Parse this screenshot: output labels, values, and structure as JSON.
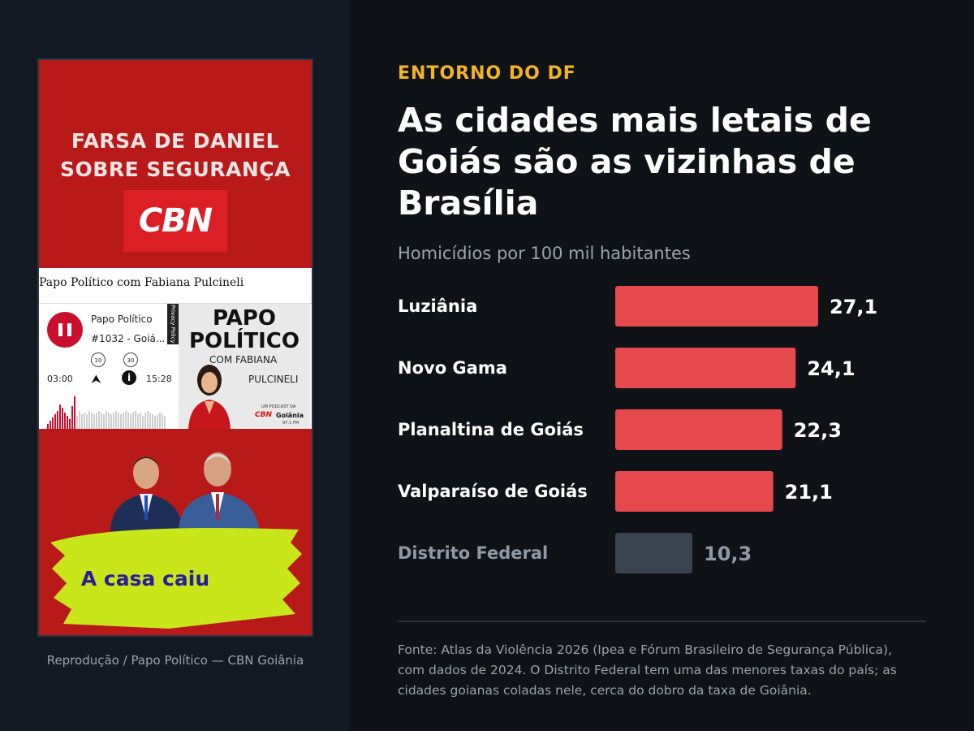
{
  "left_panel": {
    "image_alt": "Captura de tela do podcast Papo Político — CBN Goiânia",
    "top_banner": {
      "line1": "FARSA DE DANIEL",
      "line2": "SOBRE  SEGURANÇA",
      "logo": "CBN"
    },
    "podcast": {
      "page_title": "Papo Político com Fabiana Pulcineli",
      "show_name": "Papo Político",
      "episode": "#1032 - Goiá...",
      "time_current": "03:00",
      "time_total": "15:28",
      "skip_back": "10",
      "skip_forward": "30",
      "privacy_label": "Privacy Policy",
      "cover": {
        "title_line1": "PAPO",
        "title_line2": "POLÍTICO",
        "with": "COM FABIANA",
        "name": "PULCINELI",
        "badge_intro": "UM PODCAST DA",
        "badge_cbn": "CBN",
        "badge_city": "Goiânia",
        "badge_freq": "97.1 FM"
      },
      "icons": [
        "pause-icon",
        "rewind-10-icon",
        "forward-30-icon",
        "share-icon",
        "info-icon"
      ]
    },
    "bottom_banner": {
      "slogan": "A casa caiu"
    },
    "credit": "Reprodução / Papo Político — CBN Goiânia"
  },
  "article": {
    "kicker": "ENTORNO DO DF",
    "headline": "As cidades mais letais de Goiás são as vizinhas de Brasília",
    "subtitle": "Homicídios por 100 mil habitantes",
    "source": "Fonte: Atlas da Violência 2026 (Ipea e Fórum Brasileiro de Segurança Pública), com dados de 2024. O Distrito Federal tem uma das menores taxas do país; as cidades goianas coladas nele, cerca do dobro da taxa de Goiânia."
  },
  "chart_data": {
    "type": "bar",
    "orientation": "horizontal",
    "categories": [
      "Luziânia",
      "Novo Gama",
      "Planaltina de Goiás",
      "Valparaíso de Goiás",
      "Distrito Federal"
    ],
    "values": [
      27.1,
      24.1,
      22.3,
      21.1,
      10.3
    ],
    "value_labels": [
      "27,1",
      "24,1",
      "22,3",
      "21,1",
      "10,3"
    ],
    "highlight_colors": [
      "#e5484d",
      "#e5484d",
      "#e5484d",
      "#e5484d",
      "#3a4350"
    ],
    "label_colors": [
      "#ffffff",
      "#ffffff",
      "#ffffff",
      "#ffffff",
      "#8f99a5"
    ],
    "value_colors": [
      "#ffffff",
      "#ffffff",
      "#ffffff",
      "#ffffff",
      "#8f99a5"
    ],
    "xlim": [
      0,
      27.1
    ],
    "grid": false,
    "legend": "none"
  },
  "colors": {
    "accent": "#f4b324",
    "bar": "#e5484d",
    "bar_muted": "#3a4350",
    "background": "#0f1216",
    "panel": "#141a23"
  }
}
